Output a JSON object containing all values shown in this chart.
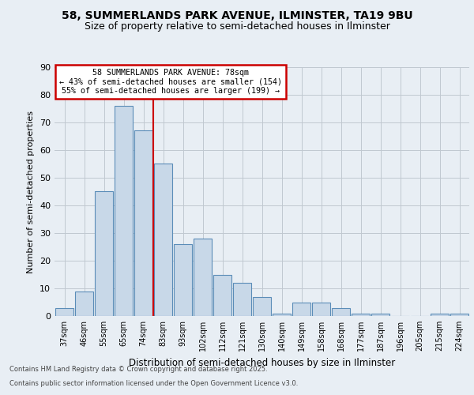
{
  "title_line1": "58, SUMMERLANDS PARK AVENUE, ILMINSTER, TA19 9BU",
  "title_line2": "Size of property relative to semi-detached houses in Ilminster",
  "xlabel": "Distribution of semi-detached houses by size in Ilminster",
  "ylabel": "Number of semi-detached properties",
  "categories": [
    "37sqm",
    "46sqm",
    "55sqm",
    "65sqm",
    "74sqm",
    "83sqm",
    "93sqm",
    "102sqm",
    "112sqm",
    "121sqm",
    "130sqm",
    "140sqm",
    "149sqm",
    "158sqm",
    "168sqm",
    "177sqm",
    "187sqm",
    "196sqm",
    "205sqm",
    "215sqm",
    "224sqm"
  ],
  "values": [
    3,
    9,
    45,
    76,
    67,
    55,
    26,
    28,
    15,
    12,
    7,
    1,
    5,
    5,
    3,
    1,
    1,
    0,
    0,
    1,
    1
  ],
  "bar_color": "#c8d8e8",
  "bar_edge_color": "#5b8db8",
  "property_bin_index": 4,
  "annotation_title": "58 SUMMERLANDS PARK AVENUE: 78sqm",
  "annotation_line2": "← 43% of semi-detached houses are smaller (154)",
  "annotation_line3": "55% of semi-detached houses are larger (199) →",
  "vline_color": "#cc0000",
  "annotation_box_edge": "#cc0000",
  "footer_line1": "Contains HM Land Registry data © Crown copyright and database right 2025.",
  "footer_line2": "Contains public sector information licensed under the Open Government Licence v3.0.",
  "ylim": [
    0,
    90
  ],
  "background_color": "#e8eef4",
  "grid_color": "#c0c8d0",
  "title_fontsize": 10,
  "subtitle_fontsize": 9
}
